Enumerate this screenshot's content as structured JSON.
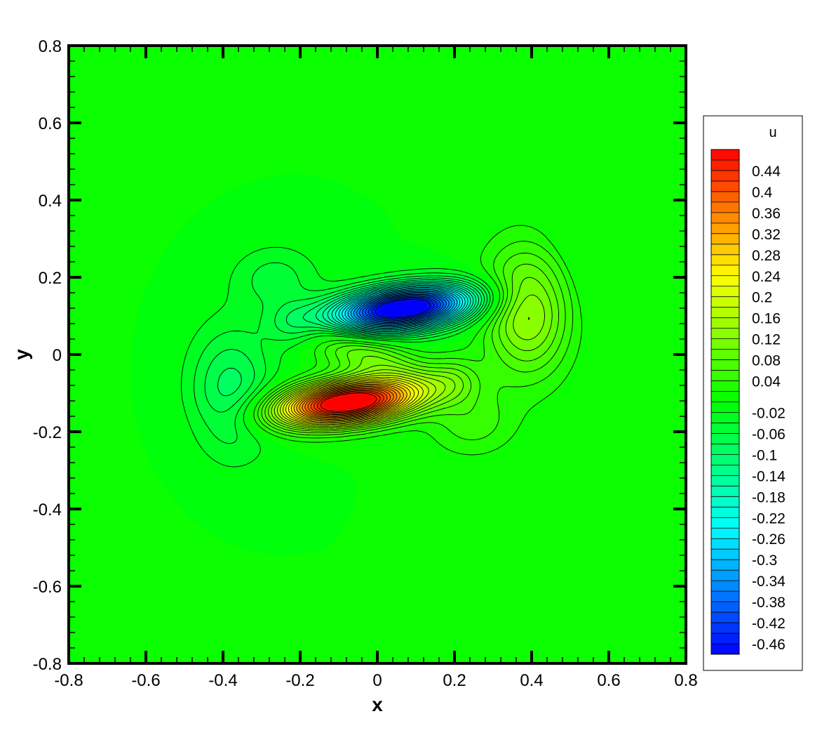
{
  "chart_data": {
    "type": "heatmap",
    "subtype": "contour",
    "xlabel": "x",
    "ylabel": "y",
    "xlim": [
      -0.8,
      0.8
    ],
    "ylim": [
      -0.8,
      0.8
    ],
    "x_ticks": [
      "-0.8",
      "-0.6",
      "-0.4",
      "-0.2",
      "0",
      "0.2",
      "0.4",
      "0.6",
      "0.8"
    ],
    "y_ticks": [
      "-0.8",
      "-0.6",
      "-0.4",
      "-0.2",
      "0",
      "0.2",
      "0.4",
      "0.6",
      "0.8"
    ],
    "x_tick_values": [
      -0.8,
      -0.6,
      -0.4,
      -0.2,
      0,
      0.2,
      0.4,
      0.6,
      0.8
    ],
    "y_tick_values": [
      -0.8,
      -0.6,
      -0.4,
      -0.2,
      0,
      0.2,
      0.4,
      0.6,
      0.8
    ],
    "background_value": 0,
    "grid": false,
    "legend_position": "right",
    "colorbar": {
      "title": "u",
      "min": -0.48,
      "max": 0.48,
      "level_step": 0.02,
      "tick_labels": [
        "0.44",
        "0.4",
        "0.36",
        "0.32",
        "0.28",
        "0.24",
        "0.2",
        "0.16",
        "0.12",
        "0.08",
        "0.04",
        "-0.02",
        "-0.06",
        "-0.1",
        "-0.14",
        "-0.18",
        "-0.22",
        "-0.26",
        "-0.3",
        "-0.34",
        "-0.38",
        "-0.42",
        "-0.46"
      ],
      "tick_values": [
        0.44,
        0.4,
        0.36,
        0.32,
        0.28,
        0.24,
        0.2,
        0.16,
        0.12,
        0.08,
        0.04,
        -0.02,
        -0.06,
        -0.1,
        -0.14,
        -0.18,
        -0.22,
        -0.26,
        -0.3,
        -0.34,
        -0.38,
        -0.42,
        -0.46
      ]
    },
    "colormap": [
      "#0000ff",
      "#00ffff",
      "#00ff00",
      "#ffff00",
      "#ff0000"
    ],
    "features": [
      {
        "label": "min",
        "x": 0.09,
        "y": 0.12,
        "value": -0.46
      },
      {
        "label": "max",
        "x": -0.1,
        "y": -0.13,
        "value": 0.46
      },
      {
        "label": "local",
        "x": 0.4,
        "y": 0.13,
        "value": 0.2
      },
      {
        "label": "local",
        "x": -0.39,
        "y": -0.1,
        "value": -0.12
      },
      {
        "label": "local",
        "x": -0.26,
        "y": 0.2,
        "value": -0.06
      },
      {
        "label": "local",
        "x": 0.24,
        "y": -0.18,
        "value": 0.06
      }
    ]
  }
}
